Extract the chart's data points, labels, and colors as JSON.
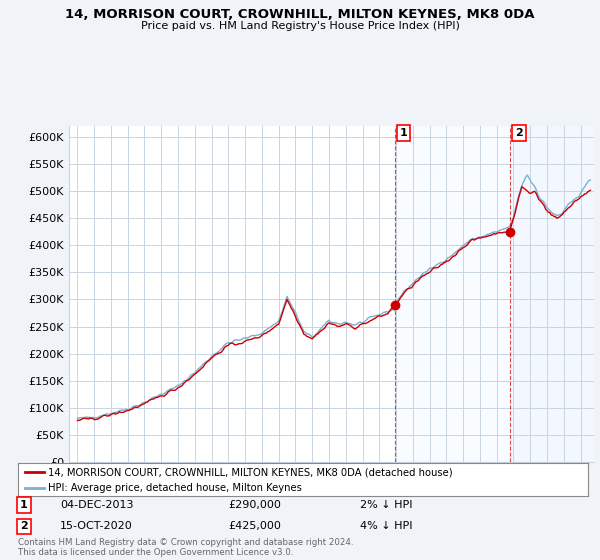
{
  "title_line1": "14, MORRISON COURT, CROWNHILL, MILTON KEYNES, MK8 0DA",
  "title_line2": "Price paid vs. HM Land Registry's House Price Index (HPI)",
  "legend_label_red": "14, MORRISON COURT, CROWNHILL, MILTON KEYNES, MK8 0DA (detached house)",
  "legend_label_blue": "HPI: Average price, detached house, Milton Keynes",
  "annotation1_date": "04-DEC-2013",
  "annotation1_price": "£290,000",
  "annotation1_hpi": "2% ↓ HPI",
  "annotation2_date": "15-OCT-2020",
  "annotation2_price": "£425,000",
  "annotation2_hpi": "4% ↓ HPI",
  "footer": "Contains HM Land Registry data © Crown copyright and database right 2024.\nThis data is licensed under the Open Government Licence v3.0.",
  "ylim": [
    0,
    620000
  ],
  "yticks": [
    0,
    50000,
    100000,
    150000,
    200000,
    250000,
    300000,
    350000,
    400000,
    450000,
    500000,
    550000,
    600000
  ],
  "background_color": "#f0f4f8",
  "plot_bg_color": "#ffffff",
  "red_color": "#cc0000",
  "blue_color": "#7ab0d4",
  "grid_color": "#c8d4e0",
  "shade_color": "#ddeeff",
  "sale1_x": 2013.92,
  "sale1_y": 290000,
  "sale2_x": 2020.79,
  "sale2_y": 425000,
  "xlim_left": 1994.5,
  "xlim_right": 2025.8
}
